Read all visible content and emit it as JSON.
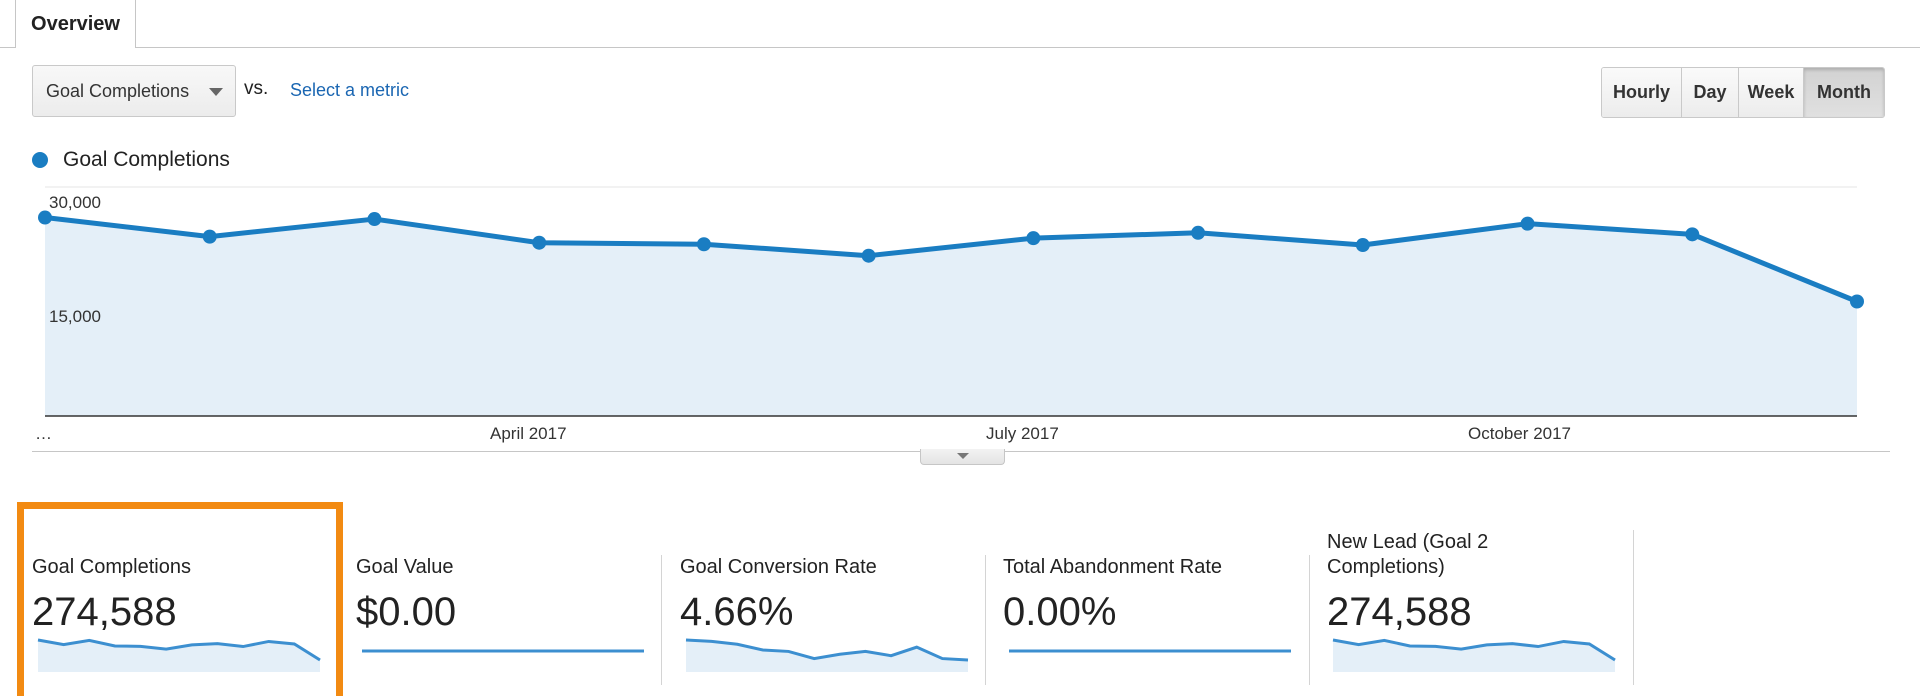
{
  "tabs": [
    {
      "label": "Overview"
    }
  ],
  "metric_selector": {
    "value": "Goal Completions",
    "vs_label": "vs.",
    "select_metric_label": "Select a metric"
  },
  "granularity": {
    "buttons": [
      "Hourly",
      "Day",
      "Week",
      "Month"
    ],
    "active": "Month"
  },
  "legend": {
    "label": "Goal Completions",
    "color": "#1a7dc2"
  },
  "chart_data": {
    "type": "area",
    "series": [
      {
        "name": "Goal Completions",
        "values": [
          26000,
          23500,
          25800,
          22700,
          22500,
          21000,
          23300,
          24000,
          22400,
          25200,
          23800,
          15000
        ]
      }
    ],
    "x_tick_labels": [
      "…",
      "April 2017",
      "July 2017",
      "October 2017"
    ],
    "y_tick_labels": [
      "30,000",
      "15,000"
    ],
    "ylim": [
      0,
      30000
    ],
    "color": "#1a7dc2",
    "fill_color": "#e4eff8",
    "grid": true
  },
  "scorecards": [
    {
      "title": "Goal Completions",
      "value": "274,588",
      "sparkline": [
        26000,
        23500,
        25800,
        22700,
        22500,
        21000,
        23300,
        24000,
        22400,
        25200,
        23800,
        15000
      ],
      "highlighted": true
    },
    {
      "title": "Goal Value",
      "value": "$0.00",
      "sparkline": [
        0,
        0,
        0,
        0,
        0,
        0,
        0,
        0,
        0,
        0,
        0,
        0
      ]
    },
    {
      "title": "Goal Conversion Rate",
      "value": "4.66%",
      "sparkline": [
        5.1,
        5.05,
        4.95,
        4.75,
        4.7,
        4.45,
        4.6,
        4.7,
        4.55,
        4.85,
        4.45,
        4.4
      ]
    },
    {
      "title": "Total Abandonment Rate",
      "value": "0.00%",
      "sparkline": [
        0,
        0,
        0,
        0,
        0,
        0,
        0,
        0,
        0,
        0,
        0,
        0
      ]
    },
    {
      "title": "New Lead (Goal 2 Completions)",
      "value": "274,588",
      "sparkline": [
        26000,
        23500,
        25800,
        22700,
        22500,
        21000,
        23300,
        24000,
        22400,
        25200,
        23800,
        15000
      ]
    }
  ],
  "highlight_color": "#f28a12"
}
